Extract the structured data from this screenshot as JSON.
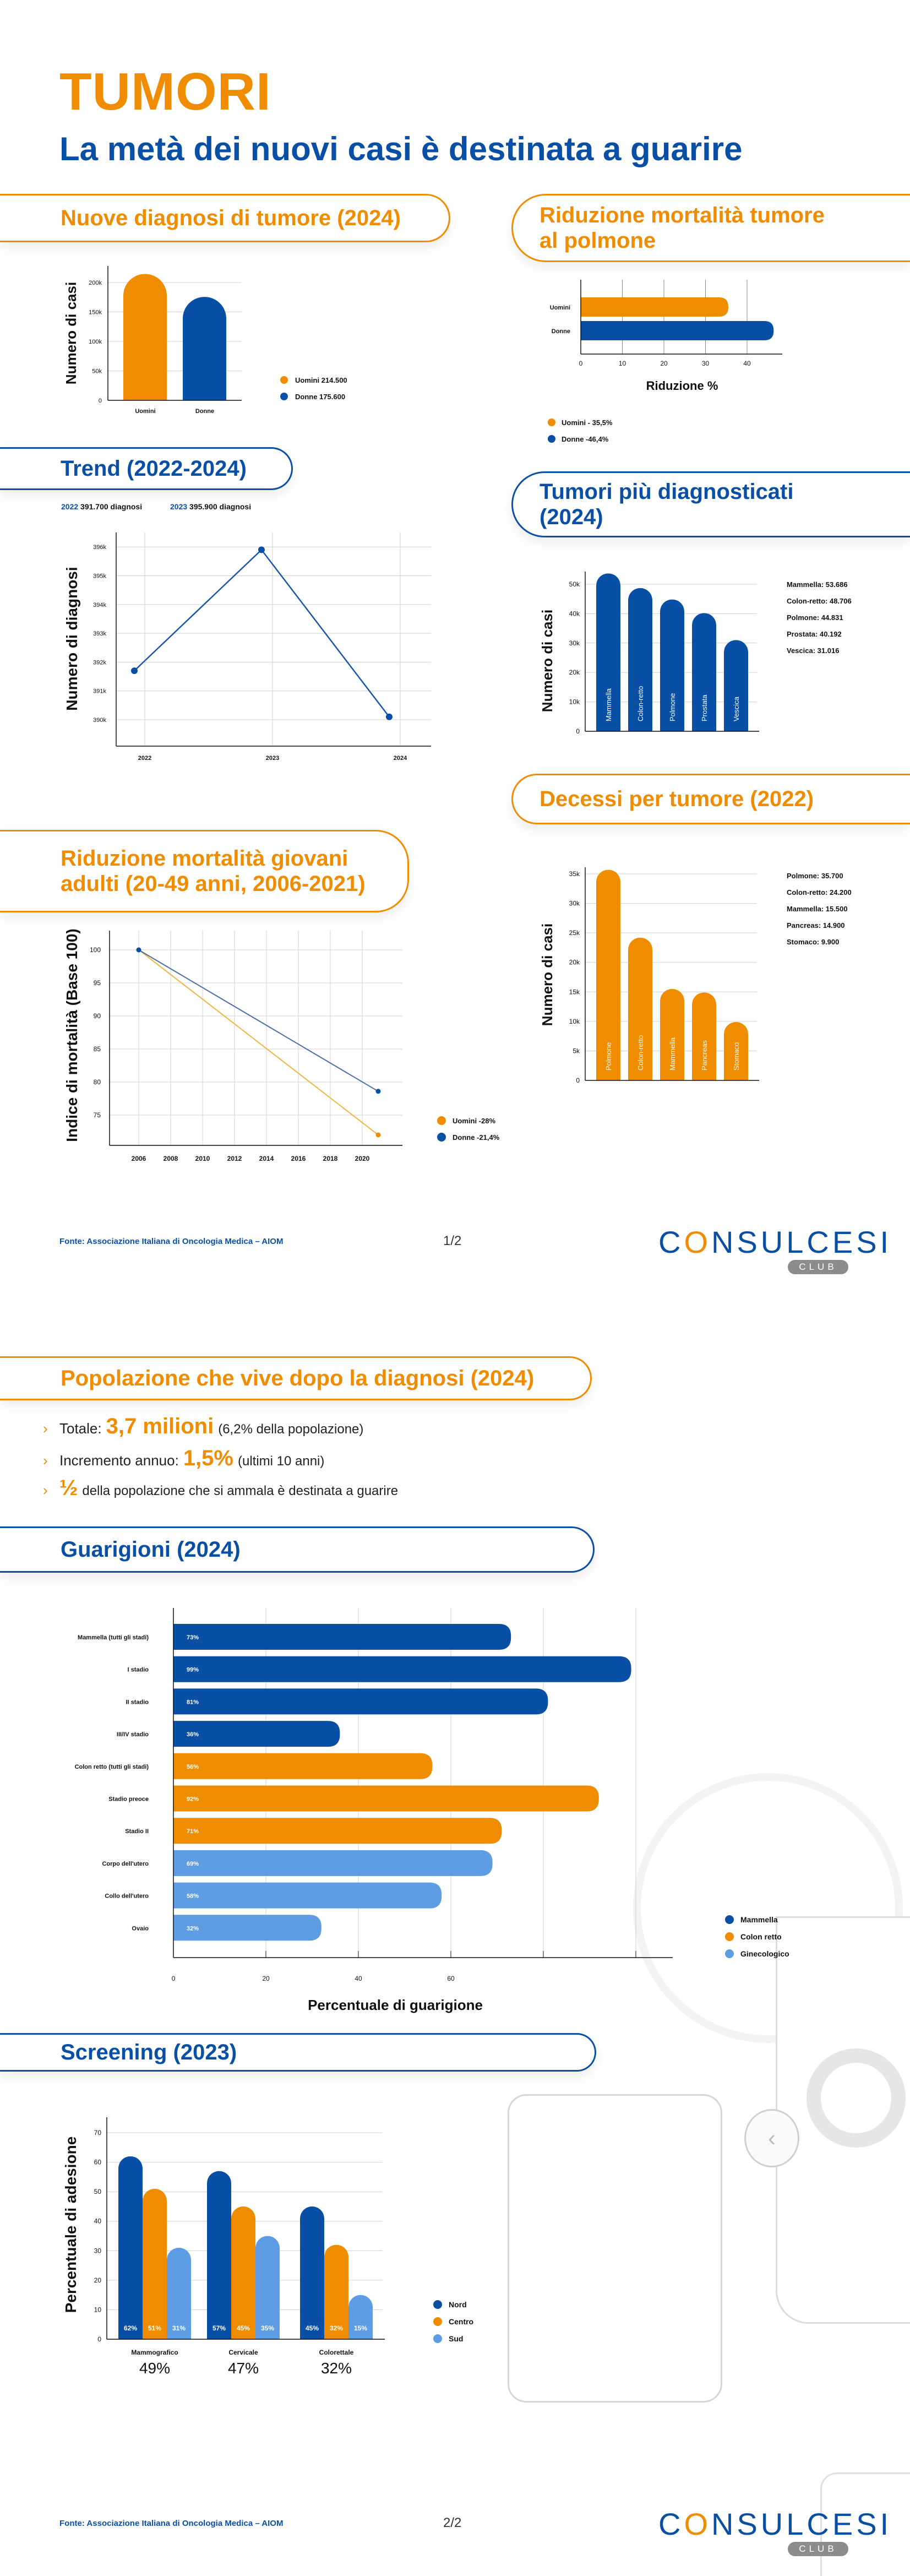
{
  "header": {
    "title": "TUMORI",
    "subtitle": "La metà dei nuovi casi è destinata a guarire"
  },
  "sections": {
    "new_diagnoses": "Nuove diagnosi di tumore (2024)",
    "lung_mortality": [
      "Riduzione mortalità tumore",
      "al polmone"
    ],
    "trend": "Trend (2022-2024)",
    "top_tumors": [
      "Tumori più diagnosticati",
      "(2024)"
    ],
    "deaths": "Decessi per tumore (2022)",
    "young_mortality": [
      "Riduzione mortalità giovani",
      "adulti (20-49 anni, 2006-2021)"
    ],
    "population": "Popolazione che vive dopo la diagnosi (2024)",
    "recovery": "Guarigioni (2024)",
    "screening": "Screening (2023)"
  },
  "trend_summary": [
    {
      "year": "2022",
      "text": "391.700 diagnosi"
    },
    {
      "year": "2023",
      "text": "395.900 diagnosi"
    }
  ],
  "population": {
    "items": [
      {
        "pre": "Totale:",
        "big": "3,7 milioni",
        "post": "(6,2% della popolazione)"
      },
      {
        "pre": "Incremento annuo:",
        "big": "1,5%",
        "post": "(ultimi 10 anni)"
      },
      {
        "pre": "",
        "big": "½",
        "post": "della popolazione che si ammala è destinata a guarire"
      }
    ],
    "bullet_icon": "chevron-right-icon"
  },
  "footers": [
    {
      "source": "Fonte: Associazione Italiana di Oncologia Medica – AIOM",
      "page": "1/2"
    },
    {
      "source": "Fonte: Associazione Italiana di Oncologia Medica – AIOM",
      "page": "2/2"
    }
  ],
  "logo": {
    "word_pre": "C",
    "word_o": "O",
    "word_post": "NSULCESI",
    "sub": "CLUB"
  },
  "colors": {
    "orange": "#EF8C00",
    "blue": "#0A4FA6",
    "light_blue": "#5E9DE3",
    "men_line": "#F2B441",
    "women_line": "#4A6FA8"
  },
  "chart_data": [
    {
      "type": "bar",
      "categories": [
        "Uomini",
        "Donne"
      ],
      "values": [
        214500,
        175600
      ],
      "colors": [
        "#EF8C00",
        "#0A4FA6"
      ],
      "ylabel": "Numero di casi",
      "yticks": [
        0,
        50000,
        100000,
        150000,
        200000
      ],
      "ytick_labels": [
        "0",
        "50k",
        "100k",
        "150k",
        "200k"
      ],
      "ylim": [
        0,
        230000
      ],
      "grid": true,
      "legend": [
        "Uomini 214.500",
        "Donne 175.600"
      ],
      "legend_position": "right"
    },
    {
      "type": "bar",
      "orientation": "horizontal",
      "categories": [
        "Uomini",
        "Donne"
      ],
      "values": [
        35.5,
        46.4
      ],
      "colors": [
        "#EF8C00",
        "#0A4FA6"
      ],
      "xlabel": "Riduzione %",
      "xticks": [
        0,
        10,
        20,
        30,
        40
      ],
      "xlim": [
        0,
        48
      ],
      "grid": true,
      "legend": [
        "Uomini - 35,5%",
        "Donne -46,4%"
      ],
      "legend_position": "bottom"
    },
    {
      "type": "line",
      "x": [
        "2022",
        "2023",
        "2024"
      ],
      "values": [
        391700,
        395900,
        390100
      ],
      "ylabel": "Numero di diagnosi",
      "yticks": [
        390000,
        391000,
        392000,
        393000,
        394000,
        395000,
        396000
      ],
      "ytick_labels": [
        "390k",
        "391k",
        "392k",
        "393k",
        "394k",
        "395k",
        "396k"
      ],
      "ylim": [
        389100,
        396500
      ],
      "grid": true
    },
    {
      "type": "bar",
      "categories": [
        "Mammella",
        "Colon-retto",
        "Polmone",
        "Prostata",
        "Vescica"
      ],
      "values": [
        53686,
        48706,
        44831,
        40192,
        31016
      ],
      "color": "#0A4FA6",
      "ylabel": "Numero di casi",
      "yticks": [
        0,
        10000,
        20000,
        30000,
        40000,
        50000
      ],
      "ytick_labels": [
        "0",
        "10k",
        "20k",
        "30k",
        "40k",
        "50k"
      ],
      "ylim": [
        0,
        55000
      ],
      "grid": true,
      "labels": [
        "Mammella: 53.686",
        "Colon-retto: 48.706",
        "Polmone: 44.831",
        "Prostata: 40.192",
        "Vescica: 31.016"
      ]
    },
    {
      "type": "bar",
      "categories": [
        "Polmone",
        "Colon-retto",
        "Mammella",
        "Pancreas",
        "Stomaco"
      ],
      "values": [
        35700,
        24200,
        15500,
        14900,
        9900
      ],
      "color": "#EF8C00",
      "ylabel": "Numero di casi",
      "yticks": [
        0,
        5000,
        10000,
        15000,
        20000,
        25000,
        30000,
        35000
      ],
      "ytick_labels": [
        "0",
        "5k",
        "10k",
        "15k",
        "20k",
        "25k",
        "30k",
        "35k"
      ],
      "ylim": [
        0,
        36500
      ],
      "grid": true,
      "labels": [
        "Polmone: 35.700",
        "Colon-retto: 24.200",
        "Mammella: 15.500",
        "Pancreas: 14.900",
        "Stomaco: 9.900"
      ]
    },
    {
      "type": "line",
      "x": [
        2006,
        2021
      ],
      "ylabel": "Indice di mortalità (Base 100)",
      "series": [
        {
          "name": "Uomini -28%",
          "values": [
            100,
            72
          ],
          "color": "#F2B441"
        },
        {
          "name": "Donne -21,4%",
          "values": [
            100,
            78.6
          ],
          "color": "#4A6FA8"
        }
      ],
      "xticks": [
        2006,
        2008,
        2010,
        2012,
        2014,
        2016,
        2018,
        2020
      ],
      "yticks": [
        75,
        80,
        85,
        90,
        95,
        100
      ],
      "ylim": [
        70,
        103
      ],
      "grid": true,
      "legend_position": "right"
    },
    {
      "type": "bar",
      "orientation": "horizontal",
      "categories": [
        "Mammella (tutti gli stadi)",
        "I stadio",
        "II stadio",
        "III/IV stadio",
        "Colon retto (tutti gli stadi)",
        "Stadio preoce",
        "Stadio II",
        "Corpo dell'utero",
        "Collo dell'utero",
        "Ovaio"
      ],
      "values": [
        73,
        99,
        81,
        36,
        56,
        92,
        71,
        69,
        58,
        32
      ],
      "value_labels": [
        "73%",
        "99%",
        "81%",
        "36%",
        "56%",
        "92%",
        "71%",
        "69%",
        "58%",
        "32%"
      ],
      "groups": [
        0,
        0,
        0,
        0,
        1,
        1,
        1,
        2,
        2,
        2
      ],
      "legend": [
        "Mammella",
        "Colon retto",
        "Ginecologico"
      ],
      "group_colors": [
        "#0A4FA6",
        "#EF8C00",
        "#5E9DE3"
      ],
      "xlabel": "Percentuale di guarigione",
      "xticks": [
        0,
        20,
        40,
        60
      ],
      "gridlines": [
        20,
        40,
        60,
        80,
        100
      ],
      "xlim": [
        0,
        108
      ],
      "grid": true,
      "legend_position": "right"
    },
    {
      "type": "bar",
      "categories": [
        "Mammografico",
        "Cervicale",
        "Colorettale"
      ],
      "totals": [
        "49%",
        "47%",
        "32%"
      ],
      "series": [
        {
          "name": "Nord",
          "values": [
            62,
            57,
            45
          ],
          "labels": [
            "62%",
            "57%",
            "45%"
          ],
          "color": "#0A4FA6"
        },
        {
          "name": "Centro",
          "values": [
            51,
            45,
            32
          ],
          "labels": [
            "51%",
            "45%",
            "32%"
          ],
          "color": "#EF8C00"
        },
        {
          "name": "Sud",
          "values": [
            31,
            35,
            15
          ],
          "labels": [
            "31%",
            "35%",
            "15%"
          ],
          "color": "#5E9DE3"
        }
      ],
      "ylabel": "Percentuale di adesione",
      "yticks": [
        0,
        10,
        20,
        30,
        40,
        50,
        60,
        70
      ],
      "ylim": [
        0,
        75
      ],
      "grid": true,
      "legend_position": "right"
    }
  ]
}
